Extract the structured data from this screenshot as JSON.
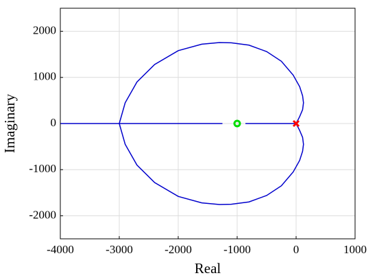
{
  "chart_data": {
    "type": "line",
    "x_label": "Real",
    "y_label": "Imaginary",
    "xlim": [
      -4000,
      1000
    ],
    "xticks": [
      -4000,
      -3000,
      -2000,
      -1000,
      0,
      1000
    ],
    "ylim": [
      -2500,
      2500
    ],
    "yticks": [
      -2000,
      -1000,
      0,
      1000,
      2000
    ],
    "grid": true,
    "series": [
      {
        "color": "#0000cc",
        "marker": "none",
        "x": [
          0,
          60,
          110,
          125,
          110,
          60,
          -50,
          -250,
          -500,
          -800,
          -1100,
          -1300,
          -1600,
          -2000,
          -2400,
          -2700,
          -2900,
          -3000,
          -2900,
          -2700,
          -2400,
          -2000,
          -1600,
          -1300,
          -1100,
          -800,
          -500,
          -250,
          -50,
          60,
          110,
          125,
          110,
          60,
          0
        ],
        "y": [
          0,
          150,
          300,
          450,
          600,
          800,
          1050,
          1350,
          1560,
          1700,
          1750,
          1755,
          1720,
          1580,
          1280,
          900,
          450,
          0,
          -450,
          -900,
          -1280,
          -1580,
          -1720,
          -1755,
          -1750,
          -1700,
          -1560,
          -1350,
          -1050,
          -800,
          -600,
          -450,
          -300,
          -150,
          0
        ]
      },
      {
        "color": "#0000cc",
        "marker": "none",
        "x": [
          -4000,
          -1250,
          null,
          -860,
          0
        ],
        "y": [
          0,
          0,
          null,
          0,
          0
        ]
      },
      {
        "color": "#00dd00",
        "marker": "o",
        "x": [
          -1000
        ],
        "y": [
          0
        ]
      },
      {
        "color": "#ff0000",
        "marker": "x",
        "x": [
          0
        ],
        "y": [
          0
        ]
      }
    ]
  }
}
